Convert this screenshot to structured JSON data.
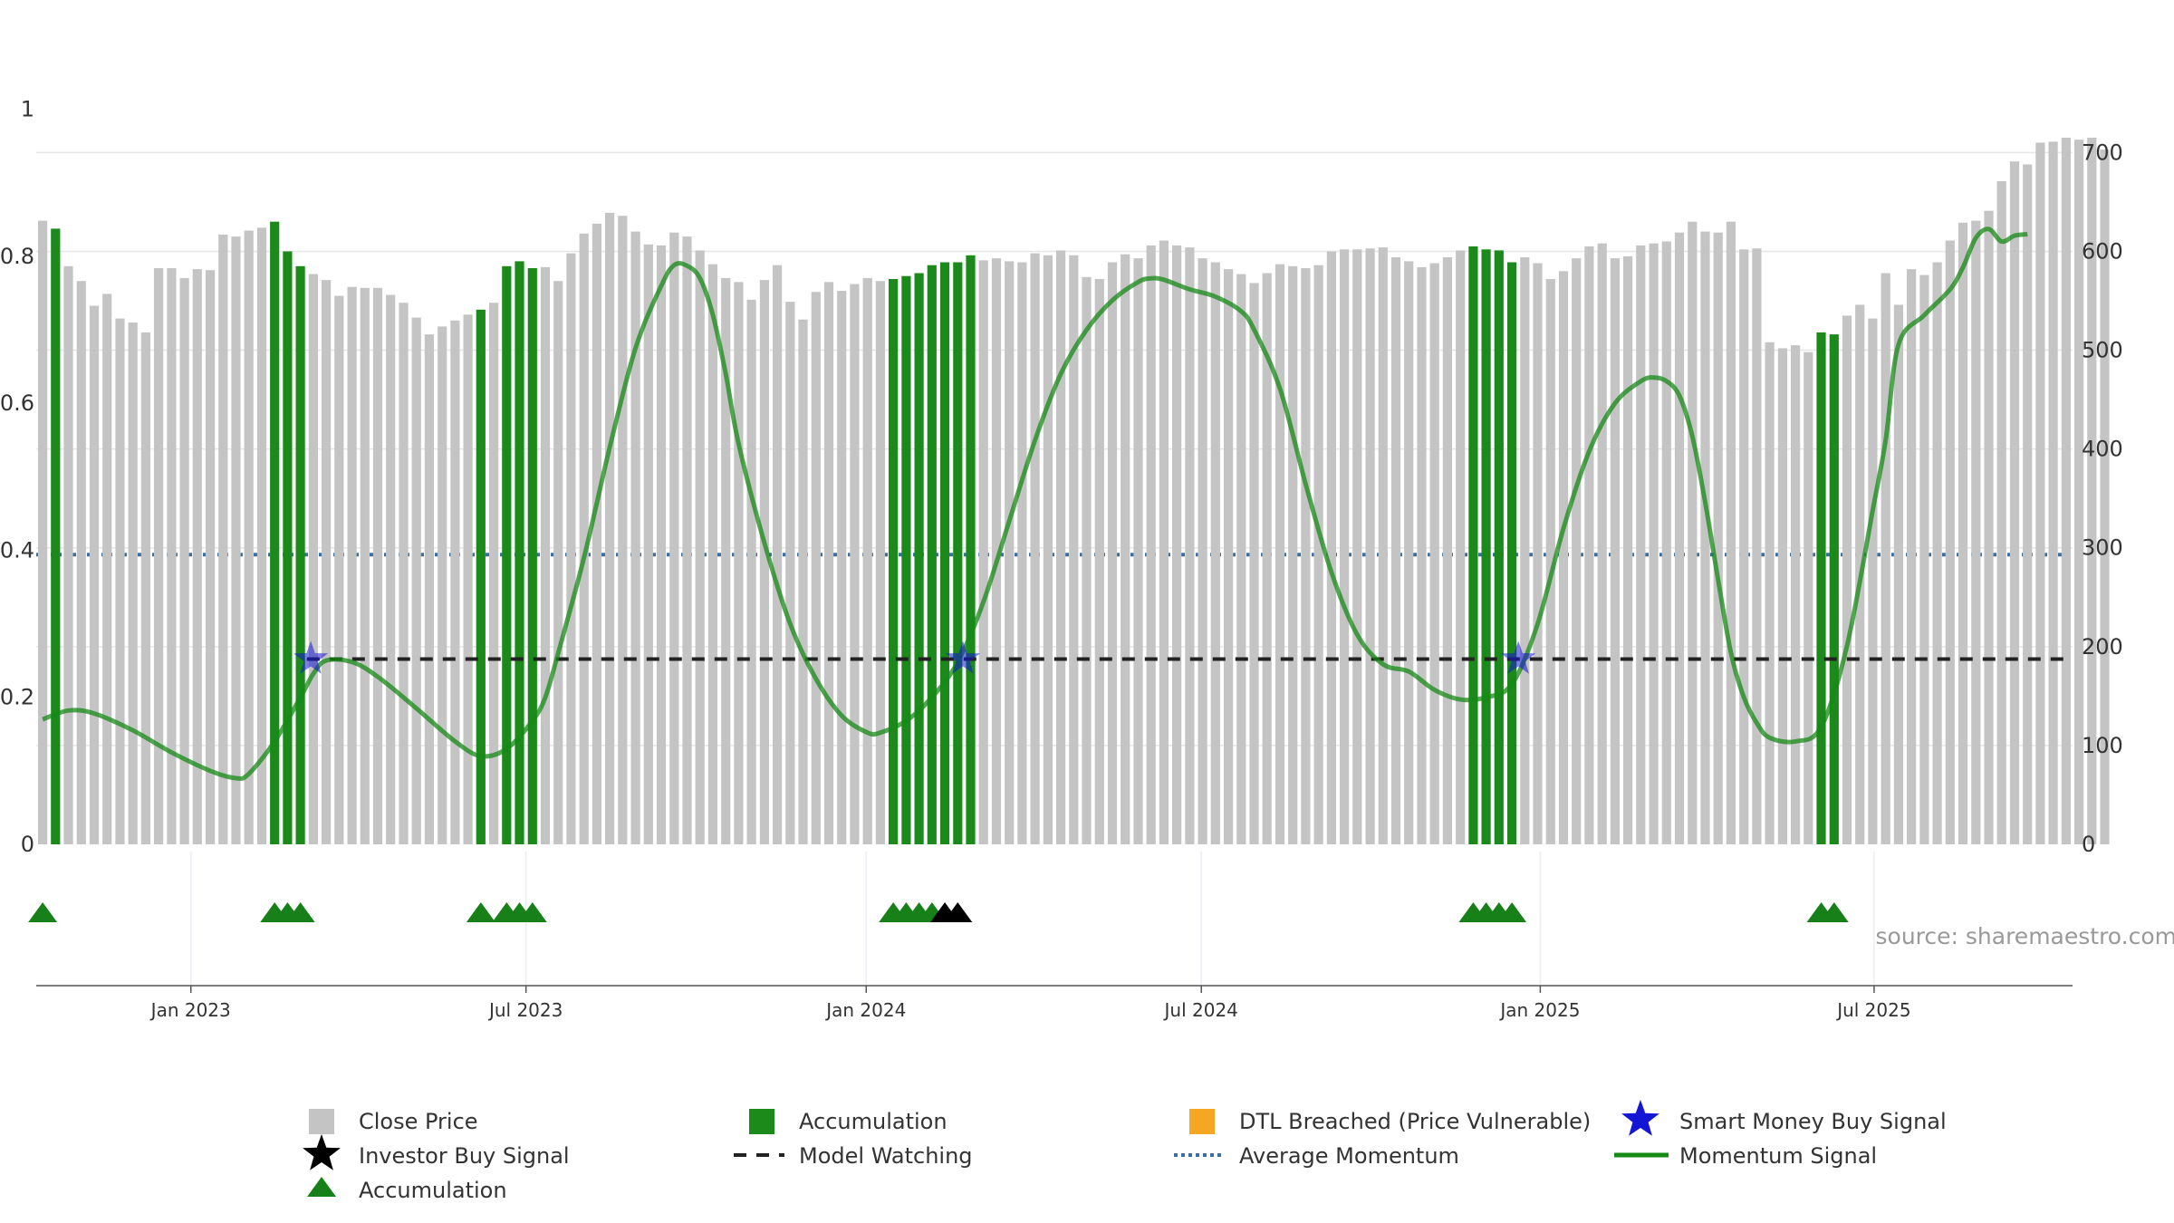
{
  "chart_data": {
    "type": "bar",
    "title": "",
    "source": "source: sharemaestro.com",
    "left_axis": {
      "range": [
        0,
        1.05
      ],
      "ticks": [
        0,
        0.2,
        0.4,
        0.6,
        0.8,
        1
      ],
      "tick_labels": [
        "0",
        "0.2",
        "0.4",
        "0.6",
        "0.8",
        "1"
      ]
    },
    "right_axis": {
      "range": [
        0,
        781
      ],
      "ticks": [
        0,
        100,
        200,
        300,
        400,
        500,
        600,
        700
      ],
      "tick_labels": [
        "0",
        "100",
        "200",
        "300",
        "400",
        "500",
        "600",
        "700"
      ]
    },
    "x_axis": {
      "start_week": -12,
      "end_week": 146,
      "ticks": [
        {
          "week": 0,
          "label": "Jan 2023"
        },
        {
          "week": 26,
          "label": "Jul 2023"
        },
        {
          "week": 52.4,
          "label": "Jan 2024"
        },
        {
          "week": 78.4,
          "label": "Jul 2024"
        },
        {
          "week": 104.7,
          "label": "Jan 2025"
        },
        {
          "week": 130.6,
          "label": "Jul 2025"
        }
      ]
    },
    "close_price": [
      631,
      623,
      585,
      570,
      545,
      557,
      532,
      528,
      518,
      583,
      583,
      573,
      582,
      581,
      617,
      615,
      621,
      624,
      630,
      600,
      585,
      577,
      571,
      555,
      564,
      563,
      563,
      556,
      548,
      533,
      516,
      524,
      530,
      536,
      541,
      548,
      585,
      590,
      583,
      584,
      570,
      598,
      618,
      628,
      639,
      636,
      620,
      607,
      606,
      619,
      615,
      601,
      587,
      573,
      569,
      551,
      571,
      586,
      549,
      531,
      559,
      569,
      560,
      567,
      573,
      570,
      572,
      575,
      578,
      586,
      589,
      589,
      596,
      591,
      593,
      590,
      589,
      598,
      596,
      601,
      596,
      574,
      572,
      589,
      597,
      593,
      606,
      611,
      606,
      604,
      593,
      589,
      582,
      577,
      568,
      578,
      587,
      585,
      583,
      586,
      600,
      602,
      602,
      603,
      604,
      594,
      590,
      584,
      588,
      594,
      601,
      605,
      602,
      601,
      589,
      594,
      588,
      572,
      580,
      593,
      605,
      608,
      593,
      595,
      606,
      608,
      610,
      619,
      630,
      620,
      619,
      630,
      602,
      603,
      508,
      502,
      505,
      498,
      518,
      516,
      535,
      546,
      532,
      578,
      546,
      582,
      576,
      589,
      611,
      629,
      631,
      641,
      671,
      691,
      688,
      710,
      711,
      715,
      713,
      715,
      703
    ],
    "accumulation_weeks": [
      -11,
      6,
      7,
      8,
      22,
      24,
      25,
      26,
      54,
      55,
      56,
      57,
      58,
      59,
      60,
      99,
      100,
      101,
      102,
      126,
      127
    ],
    "accumulation_markers": [
      {
        "x": -11.5,
        "type": "accumulation"
      },
      {
        "x": 6.5,
        "type": "accumulation"
      },
      {
        "x": 7.5,
        "type": "accumulation"
      },
      {
        "x": 8.5,
        "type": "accumulation"
      },
      {
        "x": 22.5,
        "type": "accumulation"
      },
      {
        "x": 24.5,
        "type": "accumulation"
      },
      {
        "x": 25.5,
        "type": "accumulation"
      },
      {
        "x": 26.5,
        "type": "accumulation"
      },
      {
        "x": 54.5,
        "type": "accumulation"
      },
      {
        "x": 55.5,
        "type": "accumulation"
      },
      {
        "x": 56.5,
        "type": "accumulation"
      },
      {
        "x": 57.5,
        "type": "accumulation"
      },
      {
        "x": 58.5,
        "type": "investor-buy"
      },
      {
        "x": 59.5,
        "type": "investor-buy"
      },
      {
        "x": 99.5,
        "type": "accumulation"
      },
      {
        "x": 100.5,
        "type": "accumulation"
      },
      {
        "x": 101.5,
        "type": "accumulation"
      },
      {
        "x": 102.5,
        "type": "accumulation"
      },
      {
        "x": 126.5,
        "type": "accumulation"
      },
      {
        "x": 127.5,
        "type": "accumulation"
      }
    ],
    "smart_money_buy_signals": [
      {
        "x": 8.8,
        "y": 0.252
      },
      {
        "x": 59.4,
        "y": 0.252
      },
      {
        "x": 102.5,
        "y": 0.252
      }
    ],
    "model_watching": {
      "y": 0.252,
      "from_week": 9,
      "to_week": 145.5
    },
    "average_momentum": 0.394,
    "momentum_signal": [
      {
        "x": -12,
        "y": 0.17
      },
      {
        "x": -10,
        "y": 0.182
      },
      {
        "x": -8,
        "y": 0.178
      },
      {
        "x": -5,
        "y": 0.155
      },
      {
        "x": -2,
        "y": 0.125
      },
      {
        "x": 1,
        "y": 0.1
      },
      {
        "x": 3,
        "y": 0.09
      },
      {
        "x": 4,
        "y": 0.096
      },
      {
        "x": 6,
        "y": 0.14
      },
      {
        "x": 8,
        "y": 0.2
      },
      {
        "x": 9,
        "y": 0.232
      },
      {
        "x": 10,
        "y": 0.25
      },
      {
        "x": 12,
        "y": 0.248
      },
      {
        "x": 14,
        "y": 0.228
      },
      {
        "x": 17,
        "y": 0.185
      },
      {
        "x": 20,
        "y": 0.14
      },
      {
        "x": 22,
        "y": 0.12
      },
      {
        "x": 24,
        "y": 0.13
      },
      {
        "x": 26,
        "y": 0.168
      },
      {
        "x": 27,
        "y": 0.2
      },
      {
        "x": 28,
        "y": 0.26
      },
      {
        "x": 30,
        "y": 0.39
      },
      {
        "x": 32,
        "y": 0.54
      },
      {
        "x": 34,
        "y": 0.675
      },
      {
        "x": 36,
        "y": 0.76
      },
      {
        "x": 37,
        "y": 0.788
      },
      {
        "x": 38,
        "y": 0.787
      },
      {
        "x": 39,
        "y": 0.77
      },
      {
        "x": 40,
        "y": 0.72
      },
      {
        "x": 41,
        "y": 0.64
      },
      {
        "x": 42,
        "y": 0.545
      },
      {
        "x": 44,
        "y": 0.41
      },
      {
        "x": 46,
        "y": 0.3
      },
      {
        "x": 48,
        "y": 0.225
      },
      {
        "x": 50,
        "y": 0.175
      },
      {
        "x": 52,
        "y": 0.152
      },
      {
        "x": 53,
        "y": 0.152
      },
      {
        "x": 55,
        "y": 0.168
      },
      {
        "x": 57,
        "y": 0.2
      },
      {
        "x": 59,
        "y": 0.248
      },
      {
        "x": 61,
        "y": 0.33
      },
      {
        "x": 63,
        "y": 0.44
      },
      {
        "x": 65,
        "y": 0.55
      },
      {
        "x": 67,
        "y": 0.64
      },
      {
        "x": 69,
        "y": 0.7
      },
      {
        "x": 71,
        "y": 0.74
      },
      {
        "x": 73,
        "y": 0.765
      },
      {
        "x": 74,
        "y": 0.77
      },
      {
        "x": 75,
        "y": 0.768
      },
      {
        "x": 77,
        "y": 0.755
      },
      {
        "x": 79,
        "y": 0.745
      },
      {
        "x": 81,
        "y": 0.725
      },
      {
        "x": 82,
        "y": 0.7
      },
      {
        "x": 84,
        "y": 0.62
      },
      {
        "x": 86,
        "y": 0.49
      },
      {
        "x": 88,
        "y": 0.37
      },
      {
        "x": 90,
        "y": 0.285
      },
      {
        "x": 92,
        "y": 0.245
      },
      {
        "x": 94,
        "y": 0.235
      },
      {
        "x": 96,
        "y": 0.21
      },
      {
        "x": 98,
        "y": 0.197
      },
      {
        "x": 100,
        "y": 0.2
      },
      {
        "x": 102,
        "y": 0.218
      },
      {
        "x": 104,
        "y": 0.3
      },
      {
        "x": 106,
        "y": 0.43
      },
      {
        "x": 108,
        "y": 0.535
      },
      {
        "x": 110,
        "y": 0.6
      },
      {
        "x": 112,
        "y": 0.63
      },
      {
        "x": 113,
        "y": 0.635
      },
      {
        "x": 114,
        "y": 0.63
      },
      {
        "x": 115,
        "y": 0.61
      },
      {
        "x": 116,
        "y": 0.555
      },
      {
        "x": 117,
        "y": 0.465
      },
      {
        "x": 118,
        "y": 0.36
      },
      {
        "x": 119,
        "y": 0.26
      },
      {
        "x": 120,
        "y": 0.2
      },
      {
        "x": 121,
        "y": 0.165
      },
      {
        "x": 122,
        "y": 0.145
      },
      {
        "x": 124,
        "y": 0.14
      },
      {
        "x": 126,
        "y": 0.16
      },
      {
        "x": 128,
        "y": 0.27
      },
      {
        "x": 130,
        "y": 0.455
      },
      {
        "x": 131,
        "y": 0.55
      },
      {
        "x": 132,
        "y": 0.68
      },
      {
        "x": 134,
        "y": 0.72
      },
      {
        "x": 136,
        "y": 0.755
      },
      {
        "x": 137,
        "y": 0.785
      },
      {
        "x": 138,
        "y": 0.825
      },
      {
        "x": 139,
        "y": 0.837
      },
      {
        "x": 140,
        "y": 0.82
      },
      {
        "x": 141,
        "y": 0.828
      },
      {
        "x": 142,
        "y": 0.83
      }
    ],
    "colors": {
      "close_price": "#c4c4c4",
      "accumulation": "#1b8a1b",
      "dtl_breached": "#f5a623",
      "smart_money": "#1515d6",
      "investor_buy": "#000000",
      "triangle": "#188018",
      "model_watching": "#222222",
      "average_momentum": "#3a6fa0",
      "momentum": "#158a15",
      "grid": "#e6e6e6",
      "axis_text": "#333333",
      "source": "#999999"
    },
    "legend": {
      "close_price": "Close Price",
      "accumulation_bar": "Accumulation",
      "dtl_breached": "DTL Breached (Price Vulnerable)",
      "smart_money_buy": "Smart Money Buy Signal",
      "investor_buy": "Investor Buy Signal",
      "model_watching": "Model Watching",
      "average_momentum": "Average Momentum",
      "momentum_signal": "Momentum Signal",
      "accumulation_marker": "Accumulation"
    }
  }
}
